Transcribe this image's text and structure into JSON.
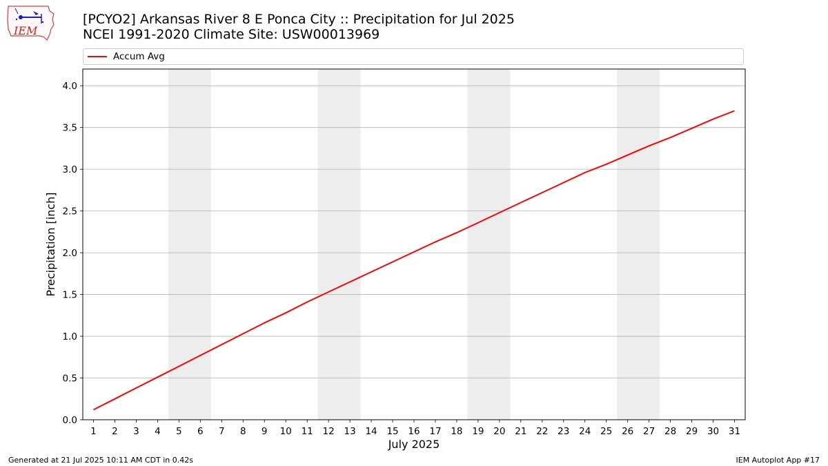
{
  "logo": {
    "text": "IEM",
    "icon": "iem-iowa-logo"
  },
  "header": {
    "title_line1": "[PCYO2] Arkansas River 8 E Ponca City :: Precipitation for Jul 2025",
    "title_line2": "NCEI 1991-2020 Climate Site: USW00013969"
  },
  "footer": {
    "generated": "Generated at 21 Jul 2025 10:11 AM CDT in 0.42s",
    "app": "IEM Autoplot App #17"
  },
  "colors": {
    "series": "#ff0000",
    "weekend_band": "#ededed",
    "grid": "#b0b0b0"
  },
  "chart_data": {
    "type": "line",
    "xlabel": "July 2025",
    "ylabel": "Precipitation [inch]",
    "xlim": [
      0.5,
      31.5
    ],
    "ylim": [
      0,
      4.2
    ],
    "yticks": [
      0.0,
      0.5,
      1.0,
      1.5,
      2.0,
      2.5,
      3.0,
      3.5,
      4.0
    ],
    "ytick_labels": [
      "0.0",
      "0.5",
      "1.0",
      "1.5",
      "2.0",
      "2.5",
      "3.0",
      "3.5",
      "4.0"
    ],
    "xticks": [
      1,
      2,
      3,
      4,
      5,
      6,
      7,
      8,
      9,
      10,
      11,
      12,
      13,
      14,
      15,
      16,
      17,
      18,
      19,
      20,
      21,
      22,
      23,
      24,
      25,
      26,
      27,
      28,
      29,
      30,
      31
    ],
    "grid": "horizontal",
    "legend_position": "top",
    "weekend_bands": [
      [
        5,
        6
      ],
      [
        12,
        13
      ],
      [
        19,
        20
      ],
      [
        26,
        27
      ]
    ],
    "series": [
      {
        "name": "Accum Avg",
        "x": [
          1,
          2,
          3,
          4,
          5,
          6,
          7,
          8,
          9,
          10,
          11,
          12,
          13,
          14,
          15,
          16,
          17,
          18,
          19,
          20,
          21,
          22,
          23,
          24,
          25,
          26,
          27,
          28,
          29,
          30,
          31
        ],
        "values": [
          0.12,
          0.25,
          0.38,
          0.51,
          0.64,
          0.77,
          0.9,
          1.03,
          1.16,
          1.28,
          1.41,
          1.53,
          1.65,
          1.77,
          1.89,
          2.01,
          2.13,
          2.24,
          2.36,
          2.48,
          2.6,
          2.72,
          2.84,
          2.96,
          3.06,
          3.17,
          3.28,
          3.38,
          3.49,
          3.6,
          3.7
        ]
      }
    ]
  }
}
